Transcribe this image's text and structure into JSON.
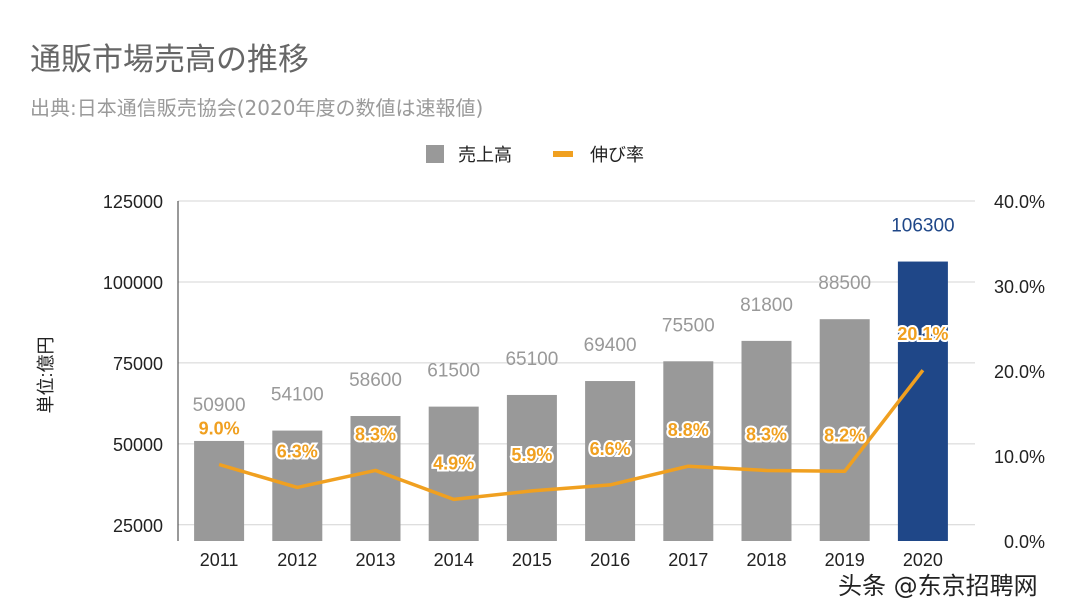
{
  "chart_data": {
    "type": "bar+line",
    "title": "通販市場売高の推移",
    "subtitle": "出典:日本通信販売協会(2020年度の数値は速報値)",
    "categories": [
      "2011",
      "2012",
      "2013",
      "2014",
      "2015",
      "2016",
      "2017",
      "2018",
      "2019",
      "2020"
    ],
    "series": [
      {
        "name": "売上高",
        "type": "bar",
        "axis": "left",
        "values": [
          50900,
          54100,
          58600,
          61500,
          65100,
          69400,
          75500,
          81800,
          88500,
          106300
        ],
        "color": "#999999",
        "highlight_color": "#1f4788",
        "highlight_index": 9
      },
      {
        "name": "伸び率",
        "type": "line",
        "axis": "right",
        "values": [
          9.0,
          6.3,
          8.3,
          4.9,
          5.9,
          6.6,
          8.8,
          8.3,
          8.2,
          20.1
        ],
        "labels": [
          "9.0%",
          "6.3%",
          "8.3%",
          "4.9%",
          "5.9%",
          "6.6%",
          "8.8%",
          "8.3%",
          "8.2%",
          "20.1%"
        ],
        "color": "#f0a020"
      }
    ],
    "ylabel": "単位:億円",
    "ylim": [
      20000,
      125000
    ],
    "yticks": [
      "25000",
      "50000",
      "75000",
      "100000",
      "125000"
    ],
    "y2lim": [
      0,
      40
    ],
    "y2ticks": [
      "0.0%",
      "10.0%",
      "20.0%",
      "30.0%",
      "40.0%"
    ],
    "grid": true,
    "legend": "top-center"
  },
  "watermark": "头条 @东京招聘网"
}
